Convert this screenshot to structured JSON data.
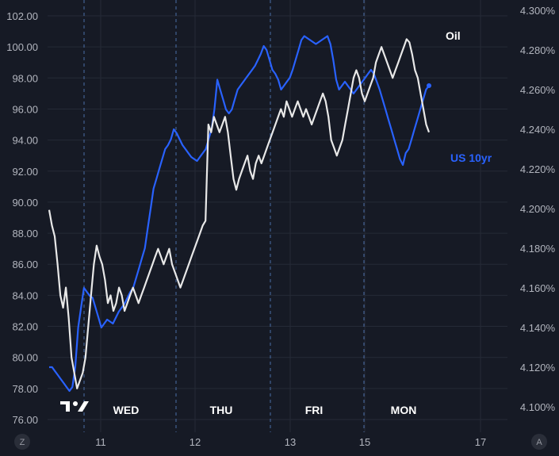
{
  "chart_data": {
    "type": "line",
    "grid": true,
    "left_axis": {
      "ylim": [
        76.0,
        103.0
      ],
      "ticks": [
        "76.00",
        "78.00",
        "80.00",
        "82.00",
        "84.00",
        "86.00",
        "88.00",
        "90.00",
        "92.00",
        "94.00",
        "96.00",
        "98.00",
        "100.00",
        "102.00"
      ]
    },
    "right_axis": {
      "ylim": [
        4.099,
        4.301
      ],
      "ticks": [
        "4.100%",
        "4.120%",
        "4.140%",
        "4.160%",
        "4.180%",
        "4.200%",
        "4.220%",
        "4.240%",
        "4.260%",
        "4.280%",
        "4.300%"
      ]
    },
    "x_ticks": [
      "11",
      "12",
      "13",
      "15",
      "17"
    ],
    "day_labels": [
      "WED",
      "THU",
      "FRI",
      "MON"
    ],
    "series": [
      {
        "name": "Oil",
        "axis": "left",
        "color": "#e8e8e8",
        "values": [
          89.5,
          88.5,
          87.8,
          86,
          84,
          83.2,
          84.5,
          82.5,
          80,
          79,
          78,
          78.5,
          79,
          80,
          82,
          84,
          86,
          87.2,
          86.5,
          86,
          85,
          83.5,
          84,
          83,
          83.5,
          84.5,
          84,
          83,
          83.5,
          84,
          84.5,
          84,
          83.5,
          84,
          84.5,
          85,
          85.5,
          86,
          86.5,
          87,
          86.5,
          86,
          86.5,
          87,
          86,
          85.5,
          85,
          84.5,
          85,
          85.5,
          86,
          86.5,
          87,
          87.5,
          88,
          88.5,
          88.8,
          95,
          94.5,
          95.5,
          95,
          94.5,
          95,
          95.5,
          94.5,
          93,
          91.5,
          90.8,
          91.5,
          92,
          92.5,
          93,
          92,
          91.5,
          92.5,
          93,
          92.5,
          93,
          93.5,
          94,
          94.5,
          95,
          95.5,
          96,
          95.5,
          96.5,
          96,
          95.5,
          96,
          96.5,
          96,
          95.5,
          96,
          95.5,
          95,
          95.5,
          96,
          96.5,
          97,
          96.5,
          95.5,
          94,
          93.5,
          93,
          93.5,
          94,
          95,
          96,
          97,
          98,
          98.5,
          98,
          97,
          96.5,
          97,
          97.5,
          98,
          99,
          99.5,
          100,
          99.5,
          99,
          98.5,
          98,
          98.5,
          99,
          99.5,
          100,
          100.5,
          100.3,
          99.5,
          98.5,
          98,
          97,
          96,
          95,
          94.5
        ]
      },
      {
        "name": "US 10yr",
        "axis": "right",
        "color": "#2962ff",
        "values": [
          4.12,
          4.12,
          4.118,
          4.116,
          4.114,
          4.112,
          4.11,
          4.108,
          4.11,
          4.12,
          4.14,
          4.15,
          4.16,
          4.158,
          4.156,
          4.155,
          4.15,
          4.145,
          4.14,
          4.142,
          4.144,
          4.143,
          4.142,
          4.145,
          4.148,
          4.15,
          4.152,
          4.155,
          4.158,
          4.16,
          4.165,
          4.17,
          4.175,
          4.18,
          4.19,
          4.2,
          4.21,
          4.215,
          4.22,
          4.225,
          4.23,
          4.232,
          4.235,
          4.24,
          4.238,
          4.235,
          4.232,
          4.23,
          4.228,
          4.226,
          4.225,
          4.224,
          4.226,
          4.228,
          4.23,
          4.235,
          4.24,
          4.25,
          4.265,
          4.26,
          4.255,
          4.25,
          4.248,
          4.25,
          4.255,
          4.26,
          4.262,
          4.264,
          4.266,
          4.268,
          4.27,
          4.272,
          4.275,
          4.278,
          4.282,
          4.28,
          4.275,
          4.27,
          4.268,
          4.265,
          4.26,
          4.262,
          4.264,
          4.266,
          4.27,
          4.275,
          4.28,
          4.285,
          4.287,
          4.286,
          4.285,
          4.284,
          4.283,
          4.284,
          4.285,
          4.286,
          4.287,
          4.283,
          4.275,
          4.265,
          4.26,
          4.262,
          4.264,
          4.262,
          4.26,
          4.258,
          4.26,
          4.262,
          4.264,
          4.266,
          4.268,
          4.27,
          4.268,
          4.264,
          4.26,
          4.255,
          4.25,
          4.245,
          4.24,
          4.235,
          4.23,
          4.225,
          4.222,
          4.228,
          4.23,
          4.235,
          4.24,
          4.245,
          4.25,
          4.255,
          4.26,
          4.262
        ]
      }
    ],
    "legend": [
      {
        "label": "Oil",
        "color": "#ffffff"
      },
      {
        "label": "US 10yr",
        "color": "#2962ff"
      }
    ]
  },
  "ui": {
    "corner_left": "Z",
    "corner_right": "A",
    "logo": "TradingView"
  }
}
